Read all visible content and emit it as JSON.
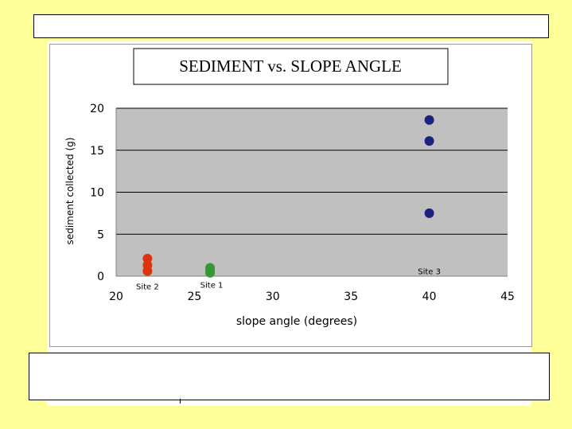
{
  "chart_data": {
    "type": "scatter",
    "title": "SEDIMENT vs. SLOPE ANGLE",
    "xlabel": "slope angle (degrees)",
    "ylabel": "sediment collected (g)",
    "xlim": [
      20,
      45
    ],
    "ylim": [
      0,
      20
    ],
    "x_ticks": [
      "20",
      "25",
      "30",
      "35",
      "40",
      "45"
    ],
    "y_ticks": [
      "0",
      "5",
      "10",
      "15",
      "20"
    ],
    "grid": true,
    "plot_background": "#c0c0c0",
    "series": [
      {
        "color": "#dd3311",
        "points": [
          [
            22,
            2.1
          ],
          [
            22,
            1.3
          ],
          [
            22,
            0.6
          ]
        ]
      },
      {
        "color": "#339933",
        "points": [
          [
            26,
            1.0
          ],
          [
            26,
            0.7
          ],
          [
            26,
            0.4
          ]
        ]
      },
      {
        "color": "#1a237e",
        "points": [
          [
            40,
            18.6
          ],
          [
            40,
            16.1
          ],
          [
            40,
            7.5
          ]
        ]
      }
    ],
    "annotations": [
      {
        "text": "Site 2",
        "x": 22,
        "y": -1.2
      },
      {
        "text": "Site 1",
        "x": 26.1,
        "y": -1.0
      },
      {
        "text": "Site 3",
        "x": 40,
        "y": 0.6
      }
    ]
  }
}
